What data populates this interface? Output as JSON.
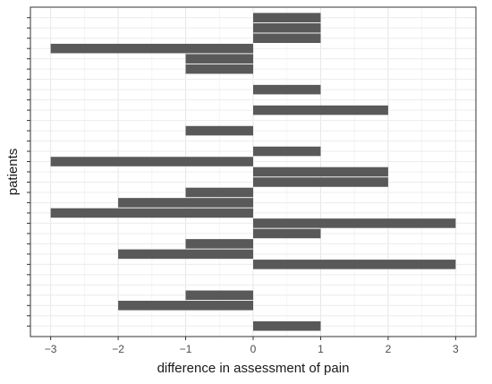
{
  "chart_data": {
    "type": "bar",
    "orientation": "horizontal",
    "xlabel": "difference in assessment of pain",
    "ylabel": "patients",
    "xlim": [
      -3.3,
      3.3
    ],
    "xticks": [
      -3,
      -2,
      -1,
      0,
      1,
      2,
      3
    ],
    "xtick_labels": [
      "−3",
      "−2",
      "−1",
      "0",
      "1",
      "2",
      "3"
    ],
    "ytick_labels_shown": false,
    "grid": true,
    "legend": "none",
    "bar_color": "#595959",
    "values": [
      1,
      1,
      1,
      -3,
      -1,
      -1,
      0,
      1,
      0,
      2,
      0,
      -1,
      0,
      1,
      -3,
      2,
      2,
      -1,
      -2,
      -3,
      3,
      1,
      -1,
      -2,
      3,
      0,
      0,
      -1,
      -2,
      0,
      1
    ]
  }
}
